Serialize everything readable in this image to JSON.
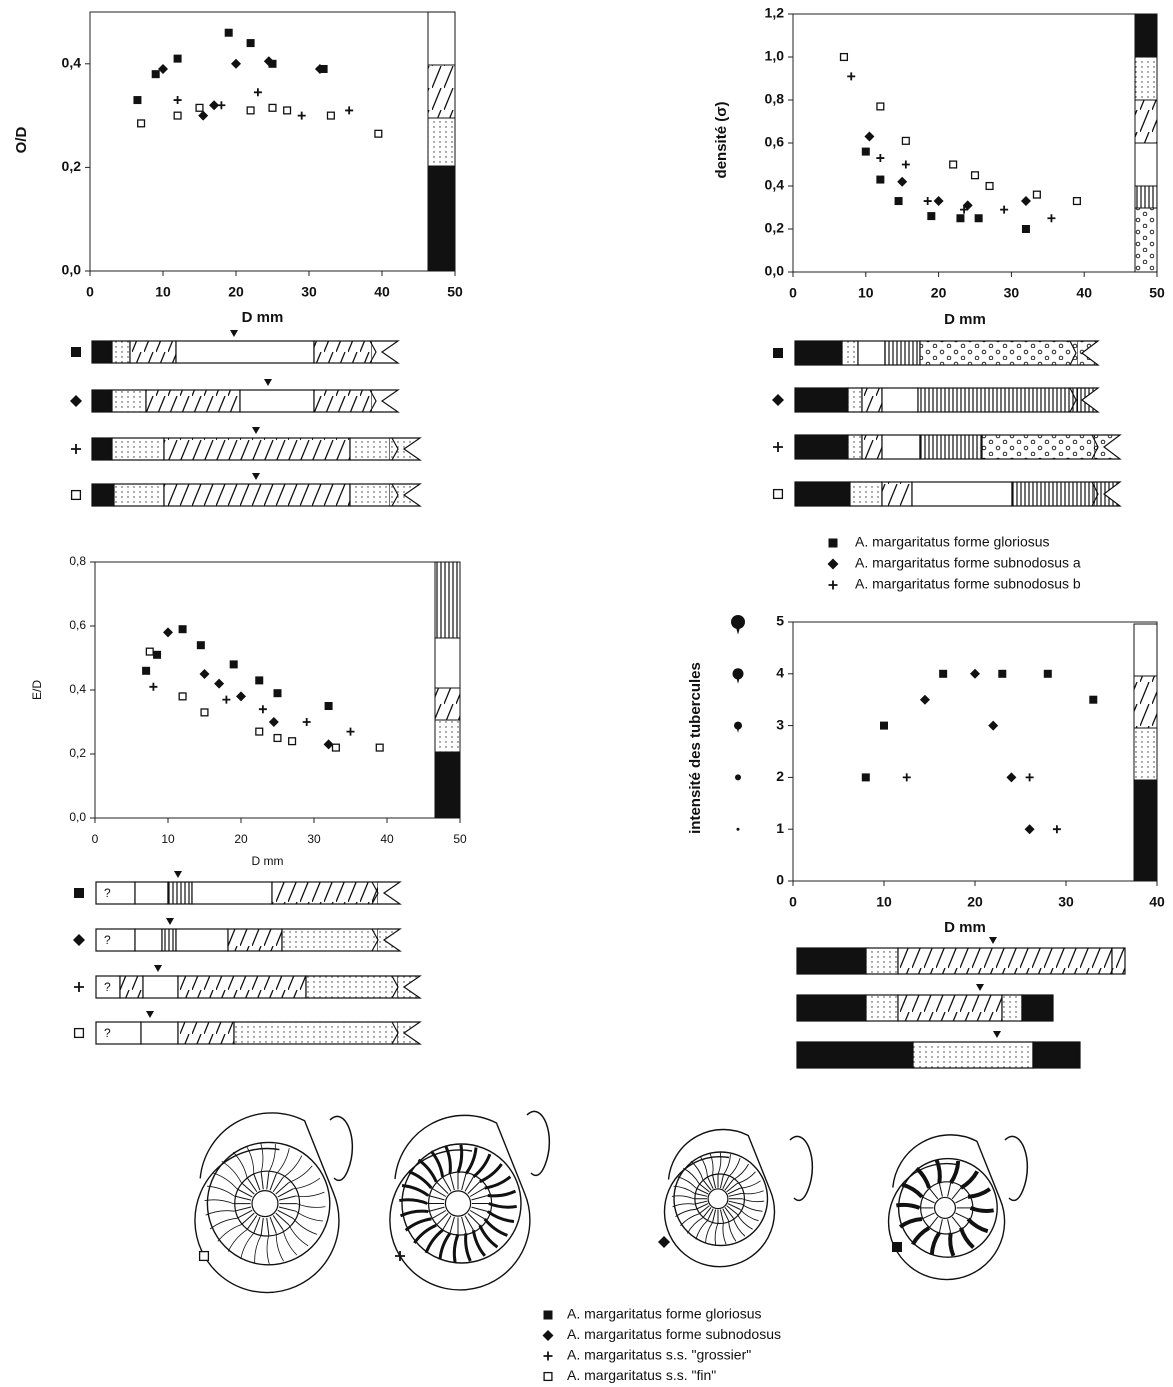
{
  "chart_data": [
    {
      "type": "scatter",
      "y_label": "O/D",
      "x_label": "D  mm",
      "xlim": [
        0,
        50
      ],
      "ylim": [
        0,
        0.5
      ],
      "xticks": [
        0,
        10,
        20,
        30,
        40,
        50
      ],
      "yticks": [
        {
          "value": 0,
          "label": "0,0"
        },
        {
          "value": 0.2,
          "label": "0,2"
        },
        {
          "value": 0.4,
          "label": "0,4"
        }
      ],
      "series": [
        {
          "marker": "filled-square",
          "color": "#111111",
          "x": [
            6.5,
            9,
            12,
            19,
            22,
            25,
            32
          ],
          "values": [
            0.33,
            0.38,
            0.41,
            0.46,
            0.44,
            0.4,
            0.39
          ]
        },
        {
          "marker": "diamond",
          "color": "#111111",
          "x": [
            10,
            15.5,
            17,
            20,
            24.5,
            31.5
          ],
          "values": [
            0.39,
            0.3,
            0.32,
            0.4,
            0.405,
            0.39
          ]
        },
        {
          "marker": "plus",
          "color": "#111111",
          "x": [
            12,
            18,
            23,
            29,
            35.5
          ],
          "values": [
            0.33,
            0.32,
            0.345,
            0.3,
            0.31
          ]
        },
        {
          "marker": "open-square",
          "color": "#111111",
          "x": [
            7,
            12,
            15,
            22,
            25,
            27,
            33,
            39.5
          ],
          "values": [
            0.285,
            0.3,
            0.315,
            0.31,
            0.315,
            0.31,
            0.3,
            0.265
          ]
        }
      ]
    },
    {
      "type": "scatter",
      "y_label": "densité (σ)",
      "x_label": "D  mm",
      "xlim": [
        0,
        50
      ],
      "ylim": [
        0,
        1.2
      ],
      "xticks": [
        0,
        10,
        20,
        30,
        40,
        50
      ],
      "yticks": [
        {
          "value": 0,
          "label": "0,0"
        },
        {
          "value": 0.2,
          "label": "0,2"
        },
        {
          "value": 0.4,
          "label": "0,4"
        },
        {
          "value": 0.6,
          "label": "0,6"
        },
        {
          "value": 0.8,
          "label": "0,8"
        },
        {
          "value": 1.0,
          "label": "1,0"
        },
        {
          "value": 1.2,
          "label": "1,2"
        }
      ],
      "series": [
        {
          "marker": "filled-square",
          "color": "#111111",
          "x": [
            7,
            10,
            12,
            14.5,
            19,
            23,
            25.5,
            32
          ],
          "values": [
            1.0,
            0.56,
            0.43,
            0.33,
            0.26,
            0.25,
            0.25,
            0.2
          ]
        },
        {
          "marker": "diamond",
          "color": "#111111",
          "x": [
            10.5,
            15,
            20,
            24,
            32
          ],
          "values": [
            0.63,
            0.42,
            0.33,
            0.31,
            0.33
          ]
        },
        {
          "marker": "plus",
          "color": "#111111",
          "x": [
            8,
            12,
            15.5,
            18.5,
            23.5,
            29,
            35.5
          ],
          "values": [
            0.91,
            0.53,
            0.5,
            0.33,
            0.29,
            0.29,
            0.25
          ]
        },
        {
          "marker": "open-square",
          "color": "#111111",
          "x": [
            7,
            12,
            15.5,
            22,
            25,
            27,
            33.5,
            39
          ],
          "values": [
            1.0,
            0.77,
            0.61,
            0.5,
            0.45,
            0.4,
            0.36,
            0.33
          ]
        }
      ]
    },
    {
      "type": "scatter",
      "y_label": "E/D",
      "x_label": "D mm",
      "bar_note": "?",
      "xlim": [
        0,
        50
      ],
      "ylim": [
        0,
        0.8
      ],
      "xticks": [
        0,
        10,
        20,
        30,
        40,
        50
      ],
      "yticks": [
        {
          "value": 0,
          "label": "0,0"
        },
        {
          "value": 0.2,
          "label": "0,2"
        },
        {
          "value": 0.4,
          "label": "0,4"
        },
        {
          "value": 0.6,
          "label": "0,6"
        },
        {
          "value": 0.8,
          "label": "0,8"
        }
      ],
      "series": [
        {
          "marker": "filled-square",
          "color": "#111111",
          "x": [
            7,
            8.5,
            12,
            14.5,
            19,
            22.5,
            25,
            32
          ],
          "values": [
            0.46,
            0.51,
            0.59,
            0.54,
            0.48,
            0.43,
            0.39,
            0.35
          ]
        },
        {
          "marker": "diamond",
          "color": "#111111",
          "x": [
            10,
            15,
            17,
            20,
            24.5,
            32
          ],
          "values": [
            0.58,
            0.45,
            0.42,
            0.38,
            0.3,
            0.23
          ]
        },
        {
          "marker": "plus",
          "color": "#111111",
          "x": [
            8,
            12,
            18,
            23,
            29,
            35
          ],
          "values": [
            0.41,
            0.38,
            0.37,
            0.34,
            0.3,
            0.27
          ]
        },
        {
          "marker": "open-square",
          "color": "#111111",
          "x": [
            7.5,
            12,
            15,
            22.5,
            25,
            27,
            33,
            39
          ],
          "values": [
            0.52,
            0.38,
            0.33,
            0.27,
            0.25,
            0.24,
            0.22,
            0.22
          ]
        }
      ]
    },
    {
      "type": "scatter",
      "y_label": "intensité des tubercules",
      "x_label": "D  mm",
      "xlim": [
        0,
        40
      ],
      "ylim": [
        0,
        5
      ],
      "xticks": [
        0,
        10,
        20,
        30,
        40
      ],
      "yticks": [
        0,
        1,
        2,
        3,
        4,
        5
      ],
      "series": [
        {
          "marker": "filled-square",
          "color": "#111111",
          "x": [
            8,
            10,
            16.5,
            23,
            28,
            33
          ],
          "values": [
            2,
            3,
            4,
            4,
            4,
            3.5
          ]
        },
        {
          "marker": "diamond",
          "color": "#111111",
          "x": [
            14.5,
            20,
            22,
            24,
            26
          ],
          "values": [
            3.5,
            4,
            3,
            2,
            1
          ]
        },
        {
          "marker": "plus",
          "color": "#111111",
          "x": [
            12.5,
            26,
            29
          ],
          "values": [
            2,
            2,
            1
          ]
        }
      ]
    }
  ],
  "legends": [
    [
      "A. margaritatus forme gloriosus",
      "A. margaritatus forme subnodosus a",
      "A. margaritatus forme subnodosus b"
    ],
    [
      "A. margaritatus forme gloriosus",
      "A. margaritatus forme subnodosus",
      "A. margaritatus s.s. \"grossier\"",
      "A. margaritatus s.s. \"fin\""
    ]
  ]
}
